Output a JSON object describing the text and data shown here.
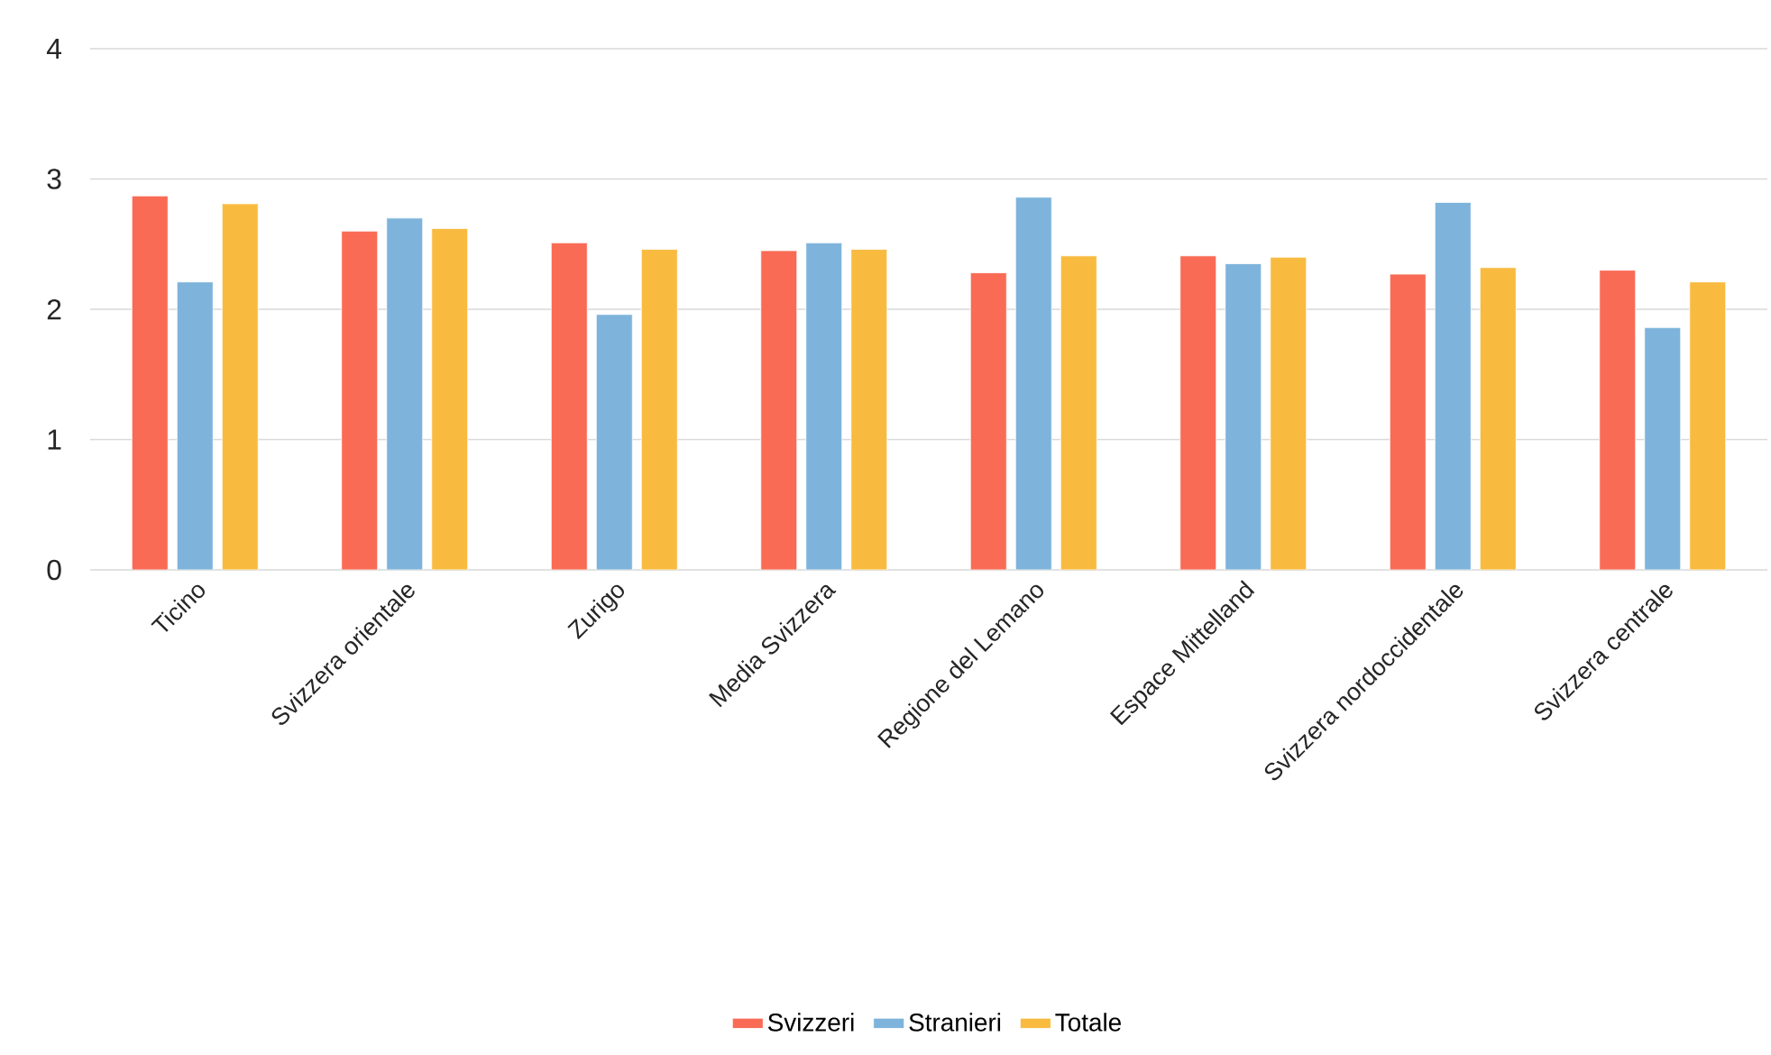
{
  "chart_data": {
    "type": "bar",
    "categories": [
      "Ticino",
      "Svizzera orientale",
      "Zurigo",
      "Media Svizzera",
      "Regione del Lemano",
      "Espace Mittelland",
      "Svizzera nordoccidentale",
      "Svizzera centrale"
    ],
    "series": [
      {
        "name": "Svizzeri",
        "color": "#f96b55",
        "values": [
          2.87,
          2.6,
          2.51,
          2.45,
          2.28,
          2.41,
          2.27,
          2.3
        ]
      },
      {
        "name": "Stranieri",
        "color": "#7eb4db",
        "values": [
          2.21,
          2.7,
          1.96,
          2.51,
          2.86,
          2.35,
          2.82,
          1.86
        ]
      },
      {
        "name": "Totale",
        "color": "#f8bb40",
        "values": [
          2.81,
          2.62,
          2.46,
          2.46,
          2.41,
          2.4,
          2.32,
          2.21
        ]
      }
    ],
    "ylim": [
      0,
      4
    ],
    "yticks": [
      0,
      1,
      2,
      3,
      4
    ],
    "grid": "y",
    "legend": "bottom"
  }
}
